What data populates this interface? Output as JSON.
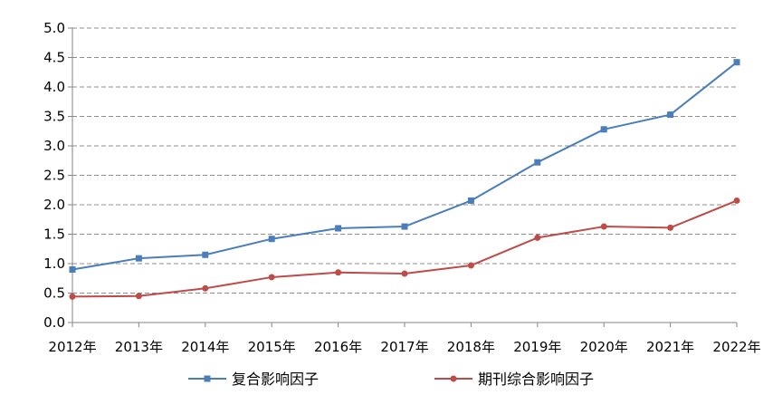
{
  "chart_data": {
    "type": "line",
    "x": [
      "2012年",
      "2013年",
      "2014年",
      "2015年",
      "2016年",
      "2017年",
      "2018年",
      "2019年",
      "2020年",
      "2021年",
      "2022年"
    ],
    "ylim": [
      0,
      5.0
    ],
    "yticks": [
      "0.0",
      "0.5",
      "1.0",
      "1.5",
      "2.0",
      "2.5",
      "3.0",
      "3.5",
      "4.0",
      "4.5",
      "5.0"
    ],
    "grid": true,
    "grid_style": "dashed-horizontal",
    "legend_position": "bottom",
    "series": [
      {
        "name": "复合影响因子",
        "color": "#4a7ebb",
        "marker": "square",
        "values": [
          0.9,
          1.09,
          1.15,
          1.42,
          1.6,
          1.63,
          2.07,
          2.72,
          3.28,
          3.53,
          4.42
        ]
      },
      {
        "name": "期刊综合影响因子",
        "color": "#be4b48",
        "marker": "circle",
        "values": [
          0.44,
          0.45,
          0.58,
          0.77,
          0.85,
          0.83,
          0.97,
          1.44,
          1.63,
          1.61,
          2.07
        ]
      }
    ]
  }
}
